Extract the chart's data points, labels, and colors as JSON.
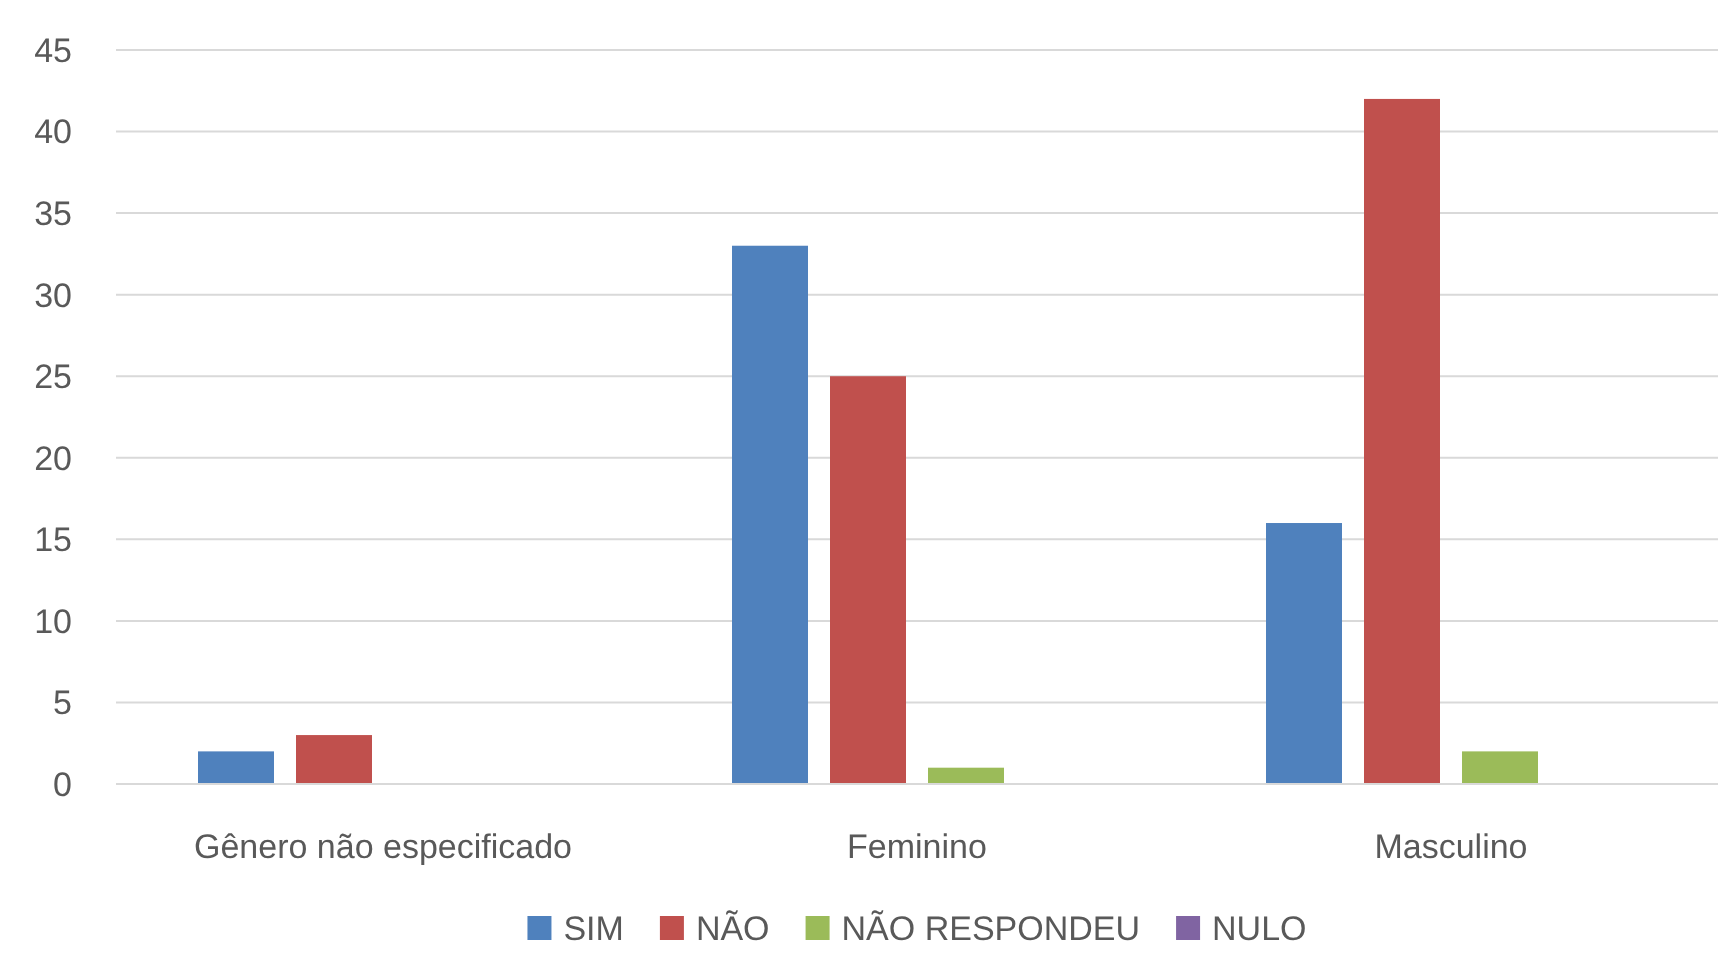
{
  "chart_data": {
    "type": "bar",
    "categories": [
      "Gênero não especificado",
      "Feminino",
      "Masculino"
    ],
    "series": [
      {
        "name": "SIM",
        "color": "#4f81bd",
        "values": [
          2,
          33,
          16
        ]
      },
      {
        "name": "NÃO",
        "color": "#c0504d",
        "values": [
          3,
          25,
          42
        ]
      },
      {
        "name": "NÃO RESPONDEU",
        "color": "#9bbb59",
        "values": [
          0,
          1,
          2
        ]
      },
      {
        "name": "NULO",
        "color": "#8064a2",
        "values": [
          0,
          0,
          0
        ]
      }
    ],
    "ylim": [
      0,
      45
    ],
    "yticks": [
      0,
      5,
      10,
      15,
      20,
      25,
      30,
      35,
      40,
      45
    ],
    "grid": "y",
    "legend": "bottom"
  }
}
